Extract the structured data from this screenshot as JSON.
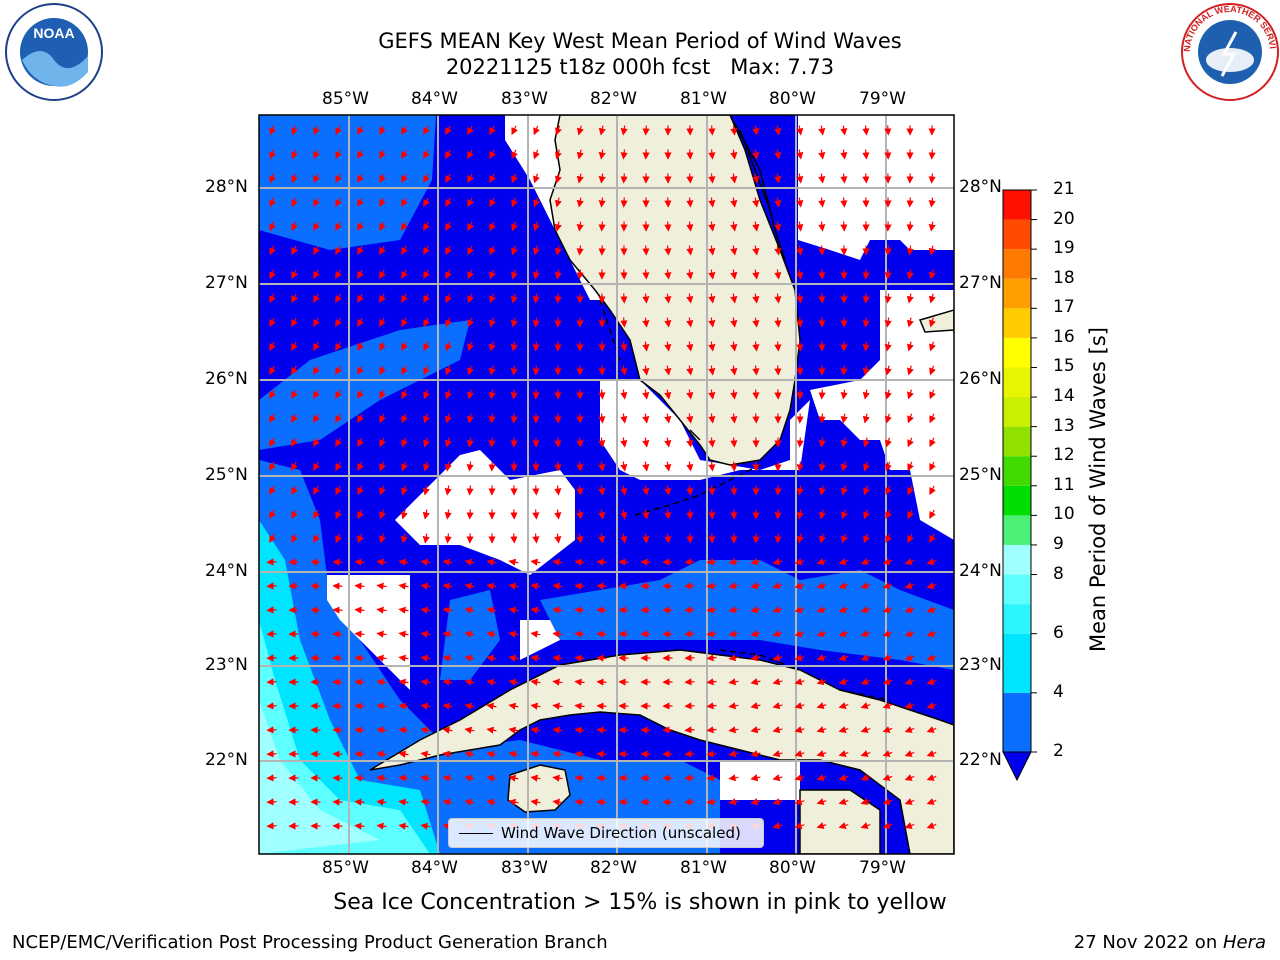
{
  "title": {
    "line1": "GEFS MEAN Key West Mean Period of Wind Waves",
    "line2": "20221125 t18z 000h fcst   Max: 7.73"
  },
  "map": {
    "lon_labels": [
      "85°W",
      "84°W",
      "83°W",
      "82°W",
      "81°W",
      "80°W",
      "79°W"
    ],
    "lat_labels": [
      "28°N",
      "27°N",
      "26°N",
      "25°N",
      "24°N",
      "23°N",
      "22°N"
    ],
    "colors": {
      "land": "#efefdc",
      "coast": "#000000",
      "grid": "#b4b4b4",
      "arrow": "#ff0000"
    }
  },
  "colorbar": {
    "label": "Mean Period of Wind Waves [s]",
    "ticks": [
      "21",
      "20",
      "19",
      "18",
      "17",
      "16",
      "15",
      "14",
      "13",
      "12",
      "11",
      "10",
      "9",
      "8",
      "6",
      "4",
      "2"
    ],
    "bands": [
      {
        "from": 2,
        "to": 4,
        "color": "#0a6eff"
      },
      {
        "from": 4,
        "to": 6,
        "color": "#00e5ff"
      },
      {
        "from": 6,
        "to": 7,
        "color": "#2cf5ff"
      },
      {
        "from": 7,
        "to": 8,
        "color": "#5effff"
      },
      {
        "from": 8,
        "to": 9,
        "color": "#a0ffff"
      },
      {
        "from": 9,
        "to": 10,
        "color": "#4cf075"
      },
      {
        "from": 10,
        "to": 11,
        "color": "#00dd00"
      },
      {
        "from": 11,
        "to": 12,
        "color": "#40d900"
      },
      {
        "from": 12,
        "to": 13,
        "color": "#90e000"
      },
      {
        "from": 13,
        "to": 14,
        "color": "#c8f000"
      },
      {
        "from": 14,
        "to": 15,
        "color": "#e8f500"
      },
      {
        "from": 15,
        "to": 16,
        "color": "#ffff00"
      },
      {
        "from": 16,
        "to": 17,
        "color": "#ffcc00"
      },
      {
        "from": 17,
        "to": 18,
        "color": "#ffa000"
      },
      {
        "from": 18,
        "to": 19,
        "color": "#ff7a00"
      },
      {
        "from": 19,
        "to": 20,
        "color": "#ff4a00"
      },
      {
        "from": 20,
        "to": 21,
        "color": "#ff1000"
      }
    ],
    "under_color": "#0000ee"
  },
  "legend": {
    "text": "Wind Wave Direction (unscaled)"
  },
  "note": "Sea Ice Concentration > 15% is shown in pink to yellow",
  "footer": {
    "left": "NCEP/EMC/Verification Post Processing Product Generation Branch",
    "right_date": "27 Nov 2022 on ",
    "right_machine": "Hera"
  },
  "logos": {
    "noaa": "NOAA",
    "nws": "NATIONAL WEATHER SERVICE"
  }
}
